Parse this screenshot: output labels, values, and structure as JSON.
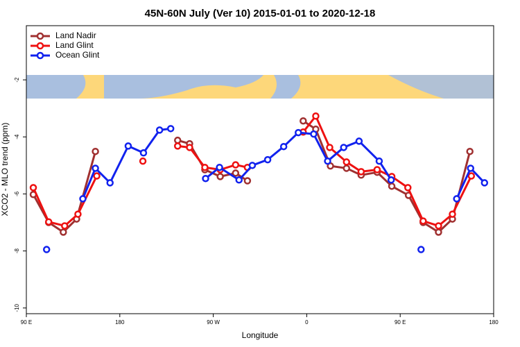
{
  "chart_data": {
    "type": "line",
    "title": "45N-60N July (Ver 10)   2015-01-01 to 2020-12-18",
    "x_label": "Longitude",
    "y_label": "XCO2 - MLO trend (ppm)",
    "xlim": [
      90,
      540
    ],
    "xticks": [
      {
        "value": 90,
        "label": "90 E"
      },
      180,
      {
        "value": 270,
        "label": "90 W"
      },
      {
        "value": 360,
        "label": "0"
      },
      {
        "value": 450,
        "label": "90 E"
      },
      {
        "value": 540,
        "label": "180"
      }
    ],
    "ylim": [
      -10.2,
      -0.1
    ],
    "yticks": [
      -10,
      -8,
      -6,
      -4,
      -2
    ],
    "legend": "top-left",
    "series": [
      {
        "name": "Land Nadir",
        "color": "#a03030",
        "x": [
          96.7,
          111.5,
          125.6,
          138.4,
          156.5,
          null,
          235.7,
          247.2,
          261.9,
          276.7,
          291.5,
          302.9,
          null,
          356.6,
          368.7,
          382.8,
          398.3,
          412.4,
          427.8,
          441.9,
          458,
          472.1,
          486.9,
          500.3,
          517.1
        ],
        "values": [
          -6.02,
          -7.0,
          -7.34,
          -6.88,
          -4.51,
          null,
          -4.12,
          -4.24,
          -5.15,
          -5.39,
          -5.27,
          -5.54,
          null,
          -3.44,
          -3.73,
          -5.02,
          -5.1,
          -5.34,
          -5.24,
          -5.73,
          -6.05,
          -7.0,
          -7.34,
          -6.88,
          -4.51
        ]
      },
      {
        "name": "Land Glint",
        "color": "#ee1111",
        "x": [
          96.7,
          111.5,
          126.9,
          139.7,
          157.8,
          null,
          202.2,
          null,
          235.7,
          247.2,
          261.9,
          276.7,
          291.5,
          302.9,
          null,
          356.6,
          368.7,
          382.1,
          398.3,
          412.4,
          427.8,
          441.9,
          457.4,
          472.1,
          486.9,
          500.3,
          518.5
        ],
        "values": [
          -5.78,
          -6.98,
          -7.12,
          -6.71,
          -5.37,
          null,
          -4.85,
          null,
          -4.32,
          -4.37,
          -5.07,
          -5.15,
          -4.98,
          -5.07,
          null,
          -3.83,
          -3.27,
          -4.37,
          -4.88,
          -5.22,
          -5.15,
          -5.39,
          -5.78,
          -6.95,
          -7.12,
          -6.71,
          -5.37
        ]
      },
      {
        "name": "Ocean Glint",
        "color": "#1122ee",
        "x": [
          109.5,
          null,
          144.4,
          156.5,
          170.6,
          188.1,
          202.8,
          218.3,
          229.0,
          null,
          262.6,
          276.0,
          294.8,
          307.6,
          322.4,
          337.8,
          351.9,
          366.7,
          380.1,
          395.6,
          410.4,
          429.8,
          441.3,
          null,
          470.1,
          null,
          504.4,
          517.8,
          531.2
        ],
        "values": [
          -7.95,
          null,
          -6.17,
          -5.1,
          -5.61,
          -4.32,
          -4.56,
          -3.76,
          -3.71,
          null,
          -5.46,
          -5.07,
          -5.51,
          -5.0,
          -4.8,
          -4.34,
          -3.85,
          -3.9,
          -4.85,
          -4.37,
          -4.15,
          -4.85,
          -5.51,
          null,
          -7.95,
          null,
          -6.17,
          -5.1,
          -5.61
        ]
      }
    ]
  }
}
